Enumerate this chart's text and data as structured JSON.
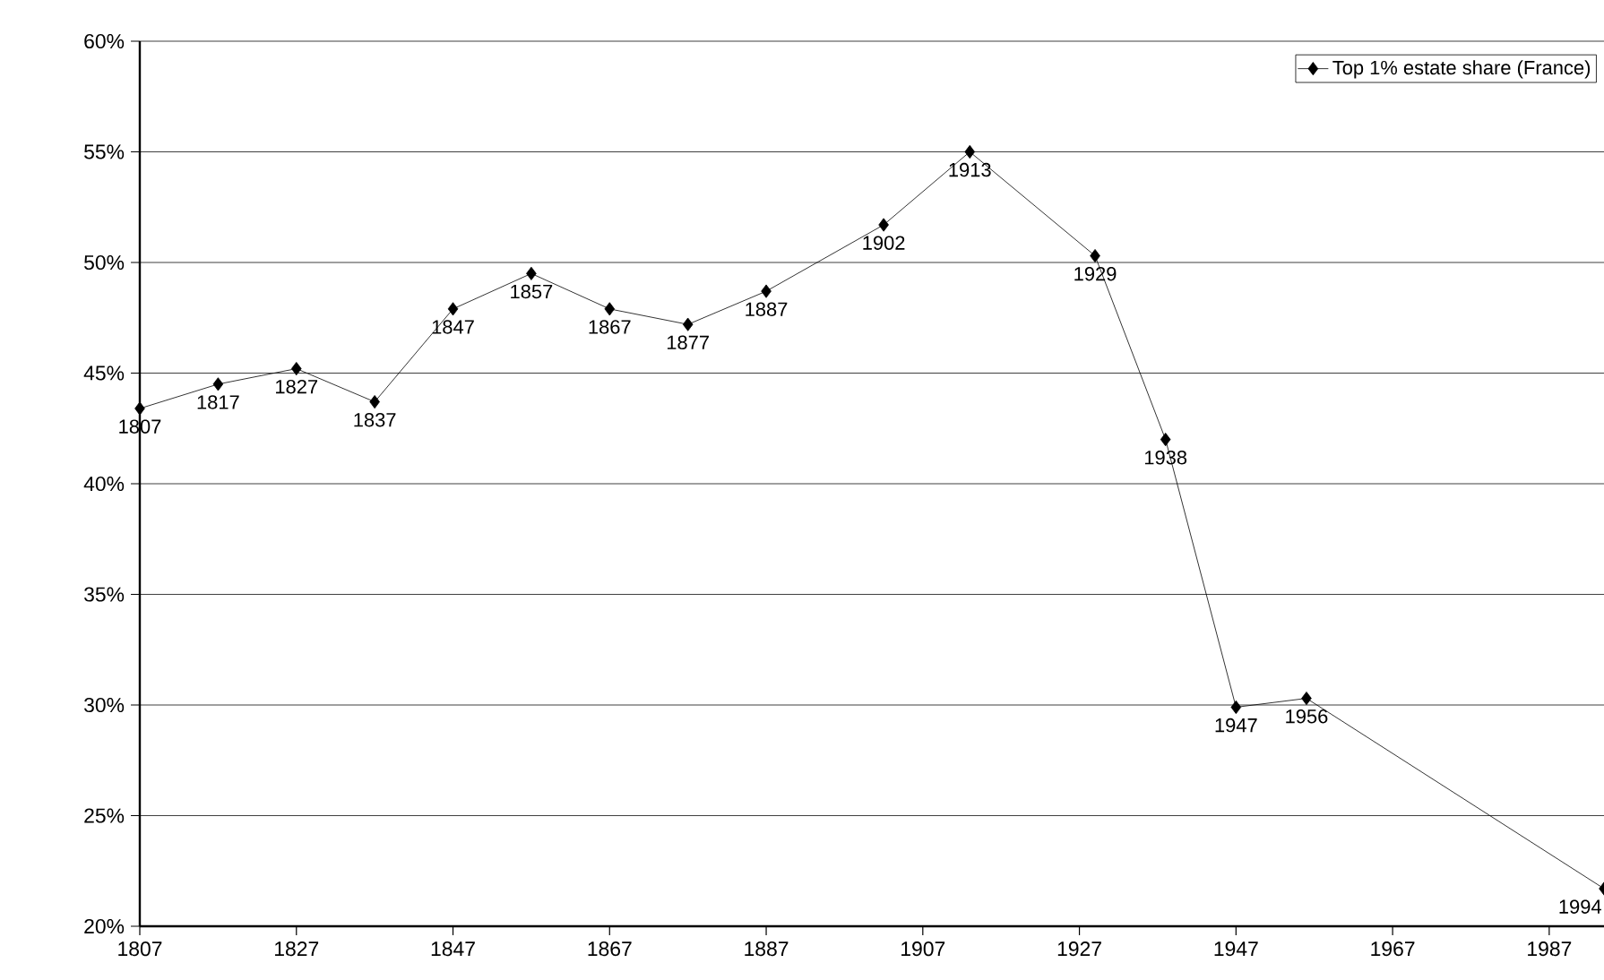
{
  "chart_data": {
    "type": "line",
    "x": [
      1807,
      1817,
      1827,
      1837,
      1847,
      1857,
      1867,
      1877,
      1887,
      1902,
      1913,
      1929,
      1938,
      1947,
      1956,
      1994
    ],
    "series": [
      {
        "name": "Top 1% estate share (France)",
        "color": "#000000",
        "values": [
          43.4,
          44.5,
          45.2,
          43.7,
          47.9,
          49.5,
          47.9,
          47.2,
          48.7,
          51.7,
          55.0,
          50.3,
          42.0,
          29.9,
          30.3,
          21.7
        ]
      }
    ],
    "xlim": [
      1807,
      1994
    ],
    "ylim": [
      20,
      60
    ],
    "xticks": [
      1807,
      1827,
      1847,
      1867,
      1887,
      1907,
      1927,
      1947,
      1967,
      1987
    ],
    "yticks": [
      {
        "value": 20,
        "label": "20%"
      },
      {
        "value": 25,
        "label": "25%"
      },
      {
        "value": 30,
        "label": "30%"
      },
      {
        "value": 35,
        "label": "35%"
      },
      {
        "value": 40,
        "label": "40%"
      },
      {
        "value": 45,
        "label": "45%"
      },
      {
        "value": 50,
        "label": "50%"
      },
      {
        "value": 55,
        "label": "55%"
      },
      {
        "value": 60,
        "label": "60%"
      }
    ],
    "grid": "y",
    "legend": "top right",
    "marker": "diamond",
    "line_style": "solid",
    "annotations": [
      {
        "text": "1807",
        "x": 1807,
        "y": 43.4
      },
      {
        "text": "1817",
        "x": 1817,
        "y": 44.5
      },
      {
        "text": "1827",
        "x": 1827,
        "y": 45.2
      },
      {
        "text": "1837",
        "x": 1837,
        "y": 43.7
      },
      {
        "text": "1847",
        "x": 1847,
        "y": 47.9
      },
      {
        "text": "1857",
        "x": 1857,
        "y": 49.5
      },
      {
        "text": "1867",
        "x": 1867,
        "y": 47.9
      },
      {
        "text": "1877",
        "x": 1877,
        "y": 47.2
      },
      {
        "text": "1887",
        "x": 1887,
        "y": 48.7
      },
      {
        "text": "1902",
        "x": 1902,
        "y": 51.7
      },
      {
        "text": "1913",
        "x": 1913,
        "y": 55.0
      },
      {
        "text": "1929",
        "x": 1929,
        "y": 50.3
      },
      {
        "text": "1938",
        "x": 1938,
        "y": 42.0
      },
      {
        "text": "1947",
        "x": 1947,
        "y": 29.9
      },
      {
        "text": "1956",
        "x": 1956,
        "y": 30.3
      },
      {
        "text": "1994",
        "x": 1994,
        "y": 21.7
      }
    ]
  }
}
